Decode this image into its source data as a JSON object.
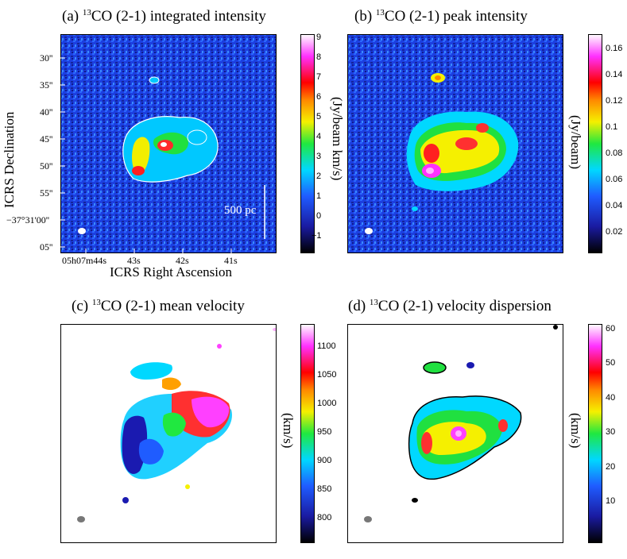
{
  "figure": {
    "panels": [
      {
        "id": "a",
        "title_prefix": "(a) ",
        "title_sup": "13",
        "title_rest": "CO (2-1) integrated intensity",
        "colorbar_label": "(Jy/beam km/s)",
        "colorbar_ticks": [
          "9",
          "8",
          "7",
          "6",
          "5",
          "4",
          "3",
          "2",
          "1",
          "0",
          "−1"
        ],
        "scalebar_label": "500 pc"
      },
      {
        "id": "b",
        "title_prefix": "(b) ",
        "title_sup": "13",
        "title_rest": "CO (2-1) peak intensity",
        "colorbar_label": "(Jy/beam)",
        "colorbar_ticks": [
          "0.16",
          "0.14",
          "0.12",
          "0.1",
          "0.08",
          "0.06",
          "0.04",
          "0.02"
        ]
      },
      {
        "id": "c",
        "title_prefix": "(c) ",
        "title_sup": "13",
        "title_rest": "CO (2-1) mean velocity",
        "colorbar_label": "(km/s)",
        "colorbar_ticks": [
          "1100",
          "1050",
          "1000",
          "950",
          "900",
          "850",
          "800"
        ]
      },
      {
        "id": "d",
        "title_prefix": "(d) ",
        "title_sup": "13",
        "title_rest": "CO (2-1) velocity dispersion",
        "colorbar_label": "(km/s)",
        "colorbar_ticks": [
          "60",
          "50",
          "40",
          "30",
          "20",
          "10"
        ]
      }
    ],
    "axes": {
      "ylabel": "ICRS Declination",
      "xlabel": "ICRS Right Ascension",
      "dec_ticks": [
        "30''",
        "35''",
        "40''",
        "45''",
        "50''",
        "55''",
        "−37°31'00''",
        "05''"
      ],
      "ra_ticks": [
        "05h07m44s",
        "43s",
        "42s",
        "41s"
      ]
    }
  },
  "chart_data": [
    {
      "type": "heatmap",
      "title": "(a) 13CO (2-1) integrated intensity",
      "xlabel": "ICRS Right Ascension",
      "ylabel": "ICRS Declination",
      "colorbar_label": "(Jy/beam km/s)",
      "colorbar_range": [
        -1.8,
        9.3
      ],
      "colormap": "black-blue-cyan-green-yellow-red-magenta-white",
      "x_ticks": [
        "05h07m44s",
        "43s",
        "42s",
        "41s"
      ],
      "y_ticks": [
        "30''",
        "35''",
        "40''",
        "45''",
        "50''",
        "55''",
        "−37°31'00''",
        "05''"
      ],
      "scalebar": "500 pc"
    },
    {
      "type": "heatmap",
      "title": "(b) 13CO (2-1) peak intensity",
      "colorbar_label": "(Jy/beam)",
      "colorbar_range": [
        0.005,
        0.175
      ],
      "colormap": "black-blue-cyan-green-yellow-red-magenta-white"
    },
    {
      "type": "heatmap",
      "title": "(c) 13CO (2-1) mean velocity",
      "colorbar_label": "(km/s)",
      "colorbar_range": [
        755,
        1140
      ],
      "colormap": "black-blue-cyan-green-yellow-red-magenta-white"
    },
    {
      "type": "heatmap",
      "title": "(d) 13CO (2-1) velocity dispersion",
      "colorbar_label": "(km/s)",
      "colorbar_range": [
        0,
        63
      ],
      "colormap": "black-blue-cyan-green-yellow-red-magenta-white"
    }
  ]
}
